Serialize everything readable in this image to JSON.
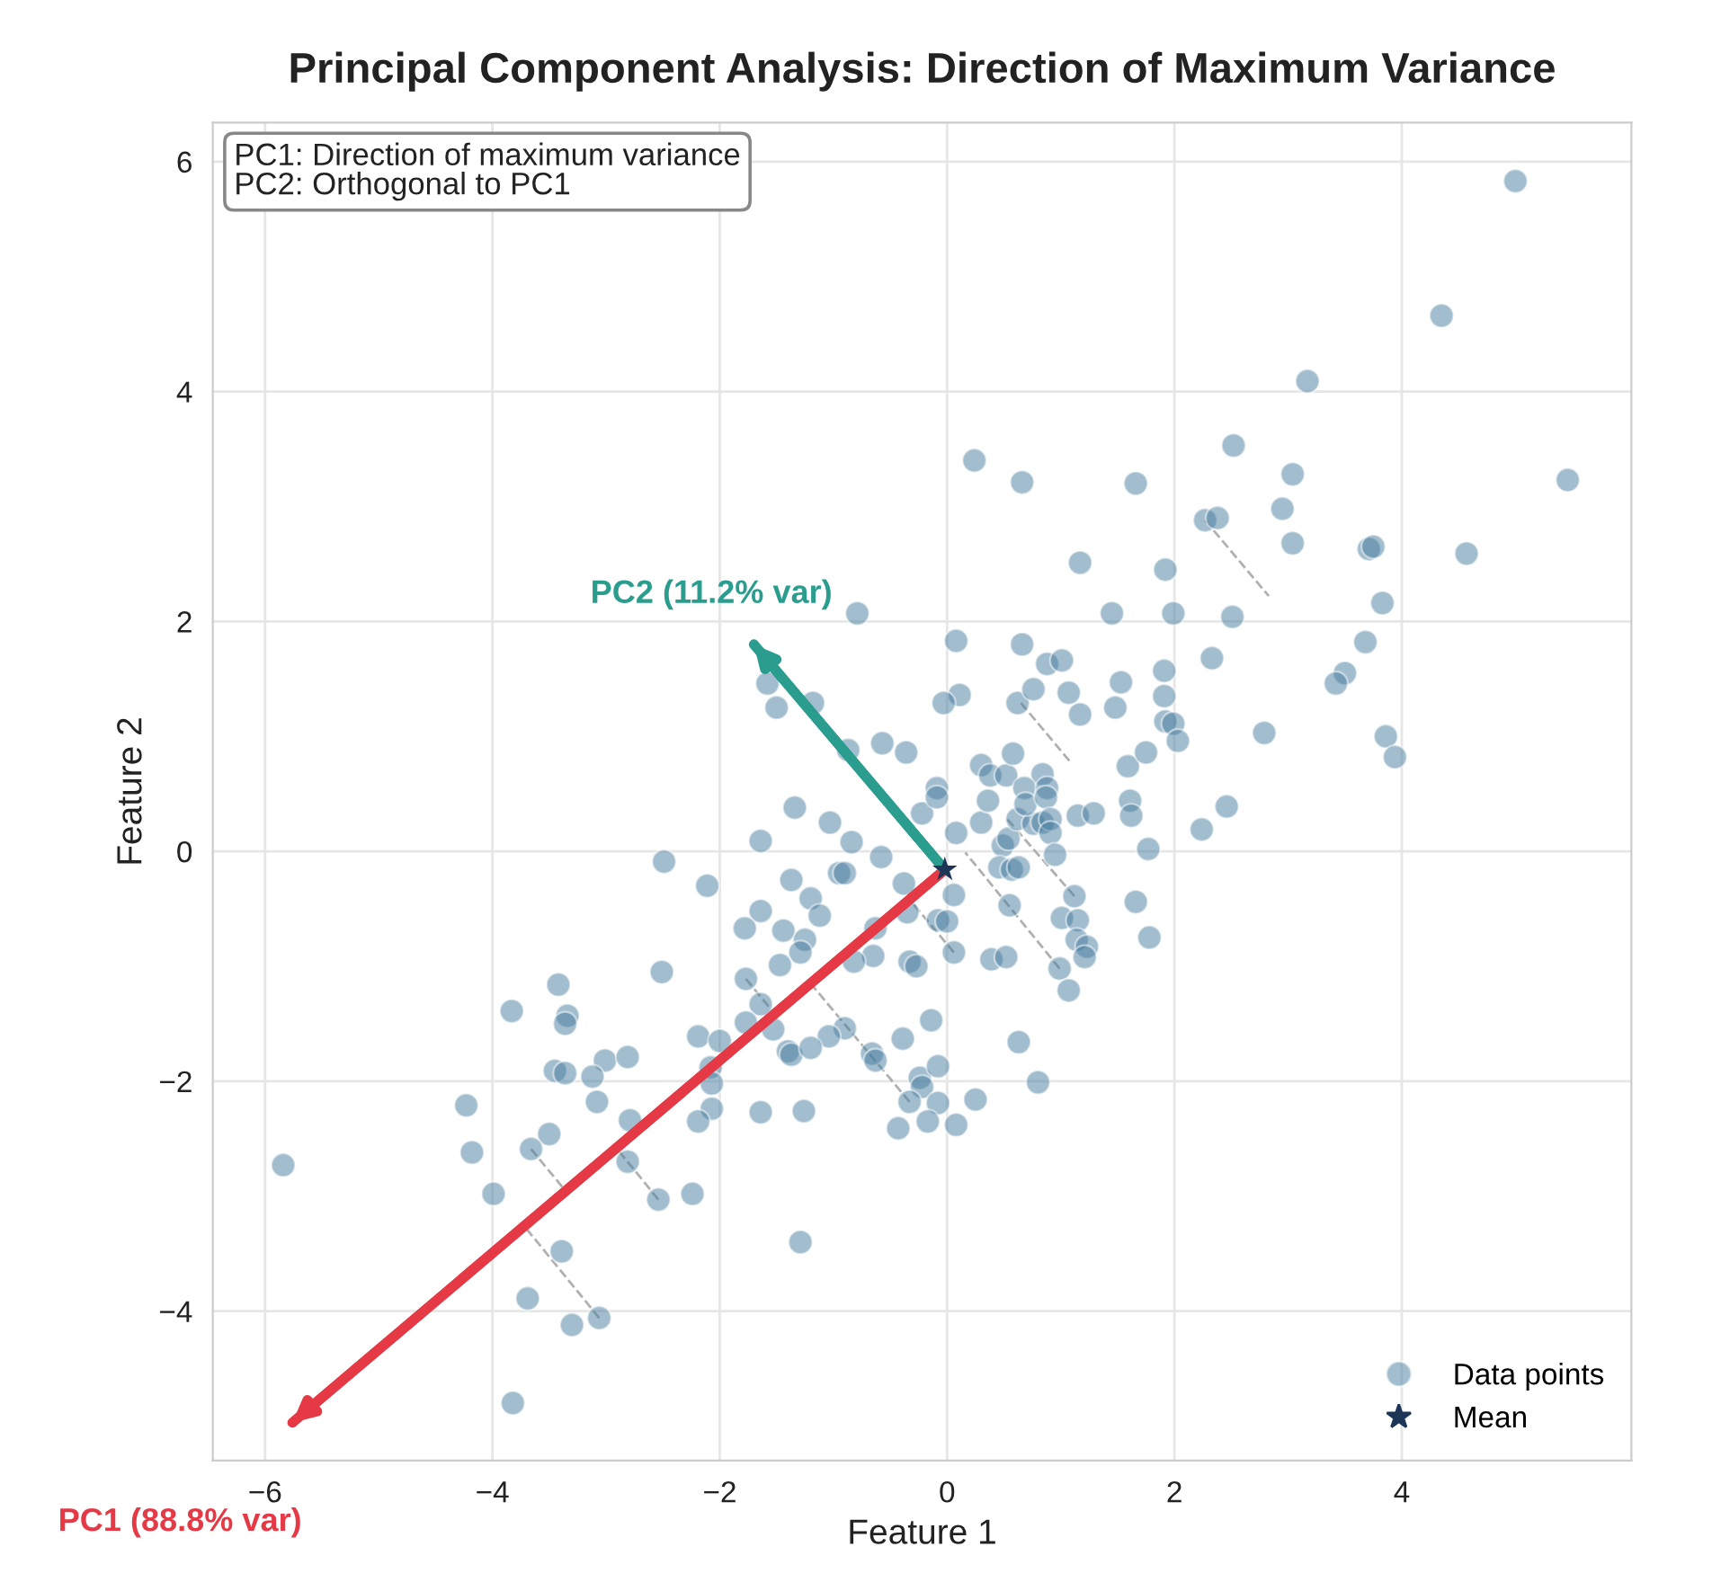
{
  "chart_data": {
    "type": "scatter",
    "title": "Principal Component Analysis: Direction of Maximum Variance",
    "xlabel": "Feature 1",
    "ylabel": "Feature 2",
    "xlim": [
      -6.46,
      6.02
    ],
    "ylim": [
      -5.3,
      6.34
    ],
    "xticks": [
      {
        "value": -6,
        "label": "−6"
      },
      {
        "value": -4,
        "label": "−4"
      },
      {
        "value": -2,
        "label": "−2"
      },
      0,
      2,
      4
    ],
    "yticks": [
      {
        "value": -4,
        "label": "−4"
      },
      {
        "value": -2,
        "label": "−2"
      },
      0,
      2,
      4,
      6
    ],
    "grid": true,
    "legend": "bottom right",
    "annotations": [
      "PC1: Direction of maximum variance\nPC2: Orthogonal to PC1"
    ],
    "series": [
      {
        "type": "line",
        "color": "#b0b0b0",
        "line_style": "dashed",
        "marker": "none",
        "x": [
          2.27,
          2.83,
          null,
          -3.66,
          -3.36,
          null,
          -3.06,
          -3.72,
          null,
          -2.54,
          -2.91,
          null,
          0.65,
          1.09,
          null,
          1.12,
          0.52,
          null,
          0.99,
          0.16,
          null,
          0.06,
          -0.33,
          null,
          -0.33,
          -1.2,
          null,
          -1.77,
          -1.52
        ],
        "values": [
          2.88,
          2.22,
          null,
          -2.59,
          -2.95,
          null,
          -4.06,
          -3.26,
          null,
          -3.03,
          -2.58,
          null,
          1.29,
          0.77,
          null,
          -0.39,
          0.29,
          null,
          -1.02,
          -0.01,
          null,
          -0.88,
          -0.42,
          null,
          -2.18,
          -1.15,
          null,
          -1.11,
          -1.41
        ]
      },
      {
        "name": "PC1 (88.8% var)",
        "type": "line",
        "color": "#e63946",
        "marker": "none",
        "x": [
          -0.02,
          -5.76
        ],
        "values": [
          -0.16,
          -4.97
        ]
      },
      {
        "name": "PC2 (11.2% var)",
        "type": "line",
        "color": "#2a9d8f",
        "marker": "none",
        "x": [
          -0.02,
          -1.7
        ],
        "values": [
          -0.16,
          1.8
        ]
      },
      {
        "name": "Data points",
        "color": "#457b9d",
        "marker": "circle",
        "x": [
          5.0,
          4.35,
          3.17,
          2.52,
          3.04,
          5.46,
          2.95,
          2.27,
          2.38,
          3.04,
          3.71,
          3.75,
          4.57,
          1.92,
          3.83,
          1.99,
          2.51,
          3.68,
          2.33,
          3.5,
          3.42,
          1.91,
          1.91,
          1.92,
          1.99,
          2.79,
          3.86,
          2.03,
          3.94,
          2.46,
          2.24,
          1.78,
          0.24,
          0.66,
          1.66,
          1.17,
          -0.79,
          1.45,
          0.08,
          0.66,
          0.88,
          1.01,
          1.53,
          -1.58,
          0.11,
          -0.03,
          -1.5,
          -1.18,
          0.62,
          0.76,
          1.07,
          1.17,
          1.48,
          -0.87,
          -0.57,
          -0.36,
          0.3,
          0.38,
          0.52,
          0.58,
          0.84,
          1.59,
          1.75,
          -0.09,
          0.68,
          0.88,
          -1.34,
          -1.64,
          -2.11,
          -1.03,
          -0.84,
          -0.58,
          -0.95,
          -0.9,
          -1.37,
          -1.2,
          -1.12,
          -1.64,
          -1.78,
          -1.44,
          -1.25,
          -1.29,
          -1.47,
          -0.63,
          -0.65,
          -0.82,
          -0.38,
          -0.35,
          -0.08,
          0.0,
          0.06,
          0.06,
          -0.33,
          -0.27,
          -1.77,
          -1.64,
          -1.77,
          -1.53,
          -0.9,
          -1.04,
          -2.19,
          -2.0,
          -1.4,
          -1.37,
          -1.2,
          -0.66,
          -0.63,
          -0.39,
          -0.14,
          0.63,
          0.8,
          -2.08,
          -2.07,
          -2.07,
          -2.19,
          -1.64,
          -1.26,
          -0.24,
          -0.22,
          -0.08,
          -0.33,
          -0.08,
          0.25,
          -0.43,
          -0.17,
          0.08,
          -2.24,
          -1.29,
          -0.22,
          -0.09,
          0.08,
          0.3,
          0.36,
          0.49,
          0.54,
          0.46,
          0.57,
          0.63,
          0.62,
          0.76,
          0.84,
          0.69,
          0.87,
          0.91,
          0.91,
          0.95,
          1.15,
          1.29,
          1.61,
          1.62,
          1.77,
          0.55,
          1.01,
          1.15,
          1.12,
          1.14,
          1.23,
          1.21,
          0.39,
          0.52,
          0.99,
          1.07,
          1.66,
          -2.49,
          -2.51,
          -3.42,
          -3.83,
          -3.34,
          -3.36,
          -3.45,
          -3.36,
          -3.01,
          -3.12,
          -2.81,
          -3.08,
          -4.23,
          -2.79,
          -3.5,
          -3.66,
          -4.18,
          -5.84,
          -2.81,
          -3.99,
          -2.54,
          -3.39,
          -3.69,
          -3.3,
          -3.06,
          -3.82
        ],
        "values": [
          5.83,
          4.66,
          4.09,
          3.53,
          3.28,
          3.23,
          2.98,
          2.88,
          2.9,
          2.68,
          2.63,
          2.65,
          2.59,
          2.45,
          2.16,
          2.07,
          2.04,
          1.82,
          1.68,
          1.55,
          1.46,
          1.57,
          1.35,
          1.13,
          1.11,
          1.03,
          1.0,
          0.96,
          0.82,
          0.39,
          0.19,
          -0.75,
          3.4,
          3.21,
          3.2,
          2.51,
          2.07,
          2.07,
          1.83,
          1.8,
          1.63,
          1.66,
          1.47,
          1.46,
          1.36,
          1.29,
          1.25,
          1.29,
          1.29,
          1.41,
          1.38,
          1.19,
          1.25,
          0.88,
          0.94,
          0.86,
          0.75,
          0.66,
          0.66,
          0.85,
          0.67,
          0.74,
          0.86,
          0.55,
          0.55,
          0.55,
          0.38,
          0.09,
          -0.3,
          0.25,
          0.08,
          -0.05,
          -0.19,
          -0.19,
          -0.25,
          -0.41,
          -0.56,
          -0.52,
          -0.67,
          -0.69,
          -0.77,
          -0.88,
          -0.99,
          -0.67,
          -0.91,
          -0.96,
          -0.28,
          -0.53,
          -0.6,
          -0.61,
          -0.38,
          -0.88,
          -0.96,
          -1.0,
          -1.11,
          -1.33,
          -1.49,
          -1.55,
          -1.54,
          -1.61,
          -1.61,
          -1.65,
          -1.74,
          -1.77,
          -1.71,
          -1.76,
          -1.82,
          -1.63,
          -1.47,
          -1.66,
          -2.01,
          -1.88,
          -2.02,
          -2.24,
          -2.35,
          -2.27,
          -2.26,
          -1.97,
          -2.05,
          -1.87,
          -2.18,
          -2.19,
          -2.16,
          -2.41,
          -2.35,
          -2.38,
          -2.98,
          -3.4,
          0.33,
          0.47,
          0.16,
          0.25,
          0.44,
          0.05,
          0.11,
          -0.14,
          -0.16,
          -0.14,
          0.28,
          0.24,
          0.25,
          0.41,
          0.47,
          0.28,
          0.16,
          -0.03,
          0.31,
          0.33,
          0.44,
          0.31,
          0.02,
          -0.47,
          -0.58,
          -0.6,
          -0.39,
          -0.77,
          -0.83,
          -0.92,
          -0.94,
          -0.92,
          -1.02,
          -1.21,
          -0.44,
          -0.09,
          -1.05,
          -1.16,
          -1.39,
          -1.43,
          -1.5,
          -1.91,
          -1.93,
          -1.82,
          -1.96,
          -1.79,
          -2.18,
          -2.21,
          -2.34,
          -2.46,
          -2.59,
          -2.62,
          -2.73,
          -2.7,
          -2.98,
          -3.03,
          -3.48,
          -3.89,
          -4.12,
          -4.06,
          -4.8
        ]
      },
      {
        "name": "Mean",
        "type": "scatter",
        "color": "#1d3557",
        "marker": "star",
        "x": [
          -0.02
        ],
        "values": [
          -0.16
        ]
      }
    ]
  }
}
